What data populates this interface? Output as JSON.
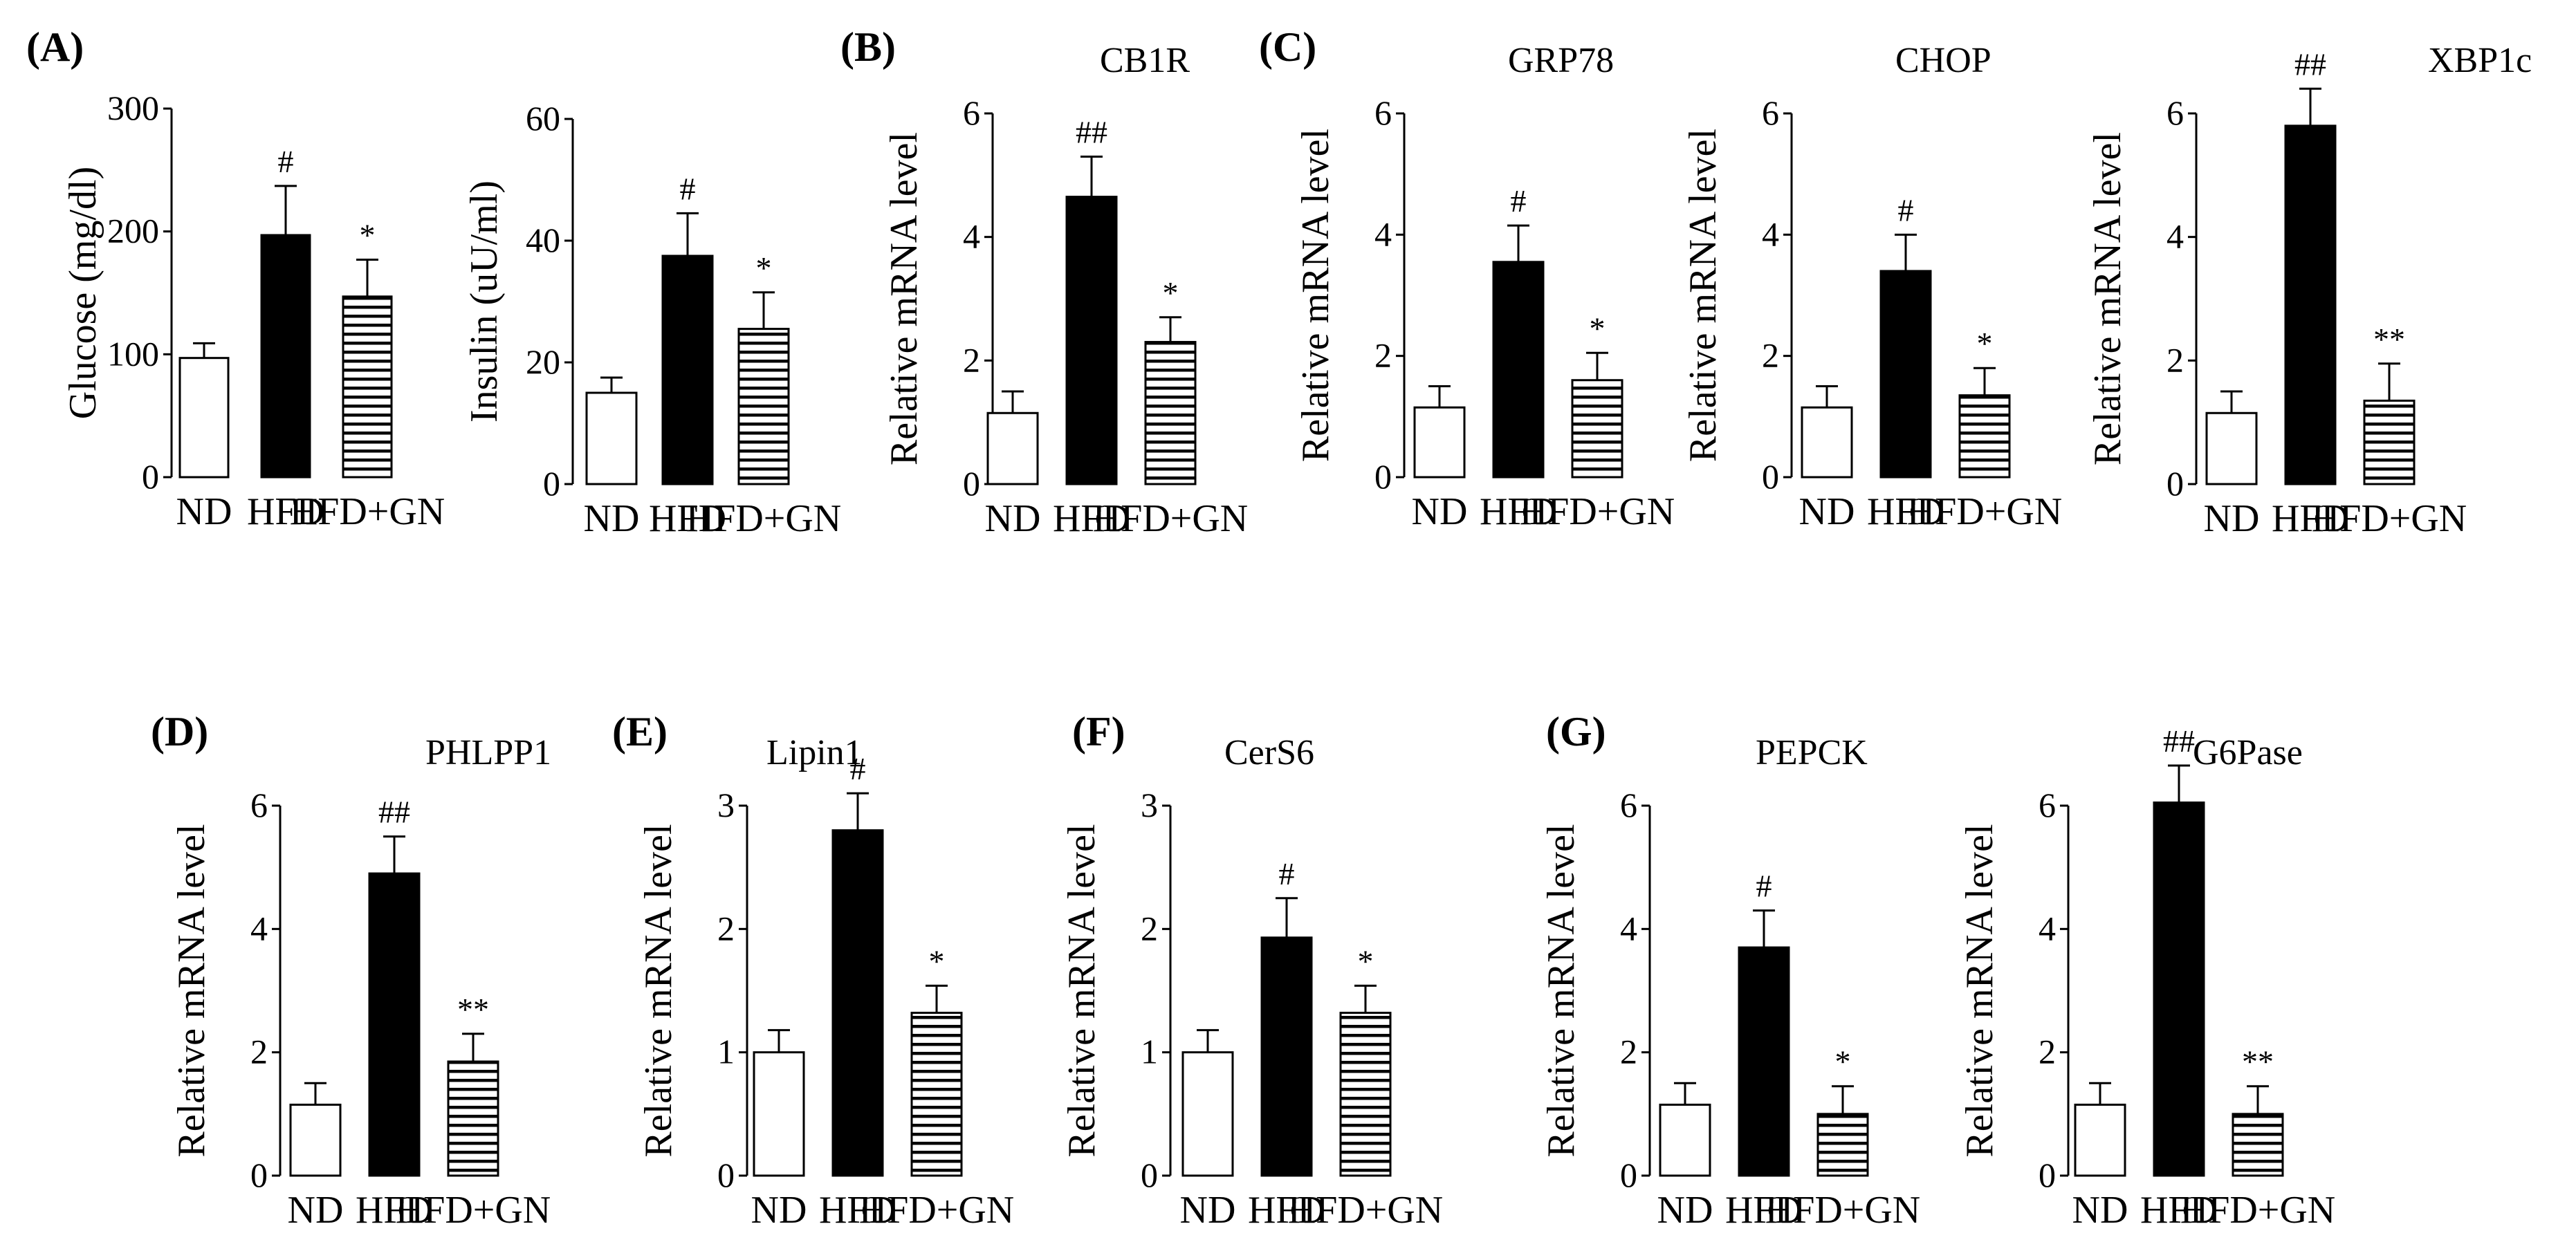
{
  "figure": {
    "panels": [
      "(A)",
      "(B)",
      "(C)",
      "(D)",
      "(E)",
      "(F)",
      "(G)"
    ],
    "groups": [
      "ND",
      "HFD",
      "HFD+GN"
    ],
    "colors": {
      "nd": "#ffffff",
      "hfd": "#000000",
      "gn_stripe": "#000000",
      "axis": "#000000"
    }
  },
  "chart_data": [
    {
      "id": "glucose",
      "panel": "(A)",
      "type": "bar",
      "title": "",
      "ylabel": "Glucose (mg/dl)",
      "categories": [
        "ND",
        "HFD",
        "HFD+GN"
      ],
      "values": [
        97,
        197,
        147
      ],
      "errors": [
        12,
        40,
        30
      ],
      "annotations": [
        "",
        "#",
        "*"
      ],
      "ylim": [
        0,
        300
      ],
      "yticks": [
        0,
        100,
        200,
        300
      ],
      "tick_labels": [
        "0",
        "100",
        "200",
        "300"
      ]
    },
    {
      "id": "insulin",
      "panel": "",
      "type": "bar",
      "title": "",
      "ylabel": "Insulin (uU/ml)",
      "categories": [
        "ND",
        "HFD",
        "HFD+GN"
      ],
      "values": [
        15,
        37.5,
        25.5
      ],
      "errors": [
        2.5,
        7,
        6
      ],
      "annotations": [
        "",
        "#",
        "*"
      ],
      "ylim": [
        0,
        60
      ],
      "yticks": [
        0,
        20,
        40,
        60
      ],
      "tick_labels": [
        "0",
        "20",
        "40",
        "60"
      ]
    },
    {
      "id": "cb1r",
      "panel": "(B)",
      "type": "bar",
      "title": "CB1R",
      "ylabel": "Relative mRNA level",
      "categories": [
        "ND",
        "HFD",
        "HFD+GN"
      ],
      "values": [
        1.15,
        4.65,
        2.3
      ],
      "errors": [
        0.35,
        0.65,
        0.4
      ],
      "annotations": [
        "",
        "##",
        "*"
      ],
      "ylim": [
        0,
        6
      ],
      "yticks": [
        0,
        2,
        4,
        6
      ],
      "tick_labels": [
        "0",
        "2",
        "4",
        "6"
      ]
    },
    {
      "id": "grp78",
      "panel": "(C)",
      "type": "bar",
      "title": "GRP78",
      "ylabel": "Relative mRNA level",
      "categories": [
        "ND",
        "HFD",
        "HFD+GN"
      ],
      "values": [
        1.15,
        3.55,
        1.6
      ],
      "errors": [
        0.35,
        0.6,
        0.45
      ],
      "annotations": [
        "",
        "#",
        "*"
      ],
      "ylim": [
        0,
        6
      ],
      "yticks": [
        0,
        2,
        4,
        6
      ],
      "tick_labels": [
        "0",
        "2",
        "4",
        "6"
      ]
    },
    {
      "id": "chop",
      "panel": "",
      "type": "bar",
      "title": "CHOP",
      "ylabel": "Relative mRNA level",
      "categories": [
        "ND",
        "HFD",
        "HFD+GN"
      ],
      "values": [
        1.15,
        3.4,
        1.35
      ],
      "errors": [
        0.35,
        0.6,
        0.45
      ],
      "annotations": [
        "",
        "#",
        "*"
      ],
      "ylim": [
        0,
        6
      ],
      "yticks": [
        0,
        2,
        4,
        6
      ],
      "tick_labels": [
        "0",
        "2",
        "4",
        "6"
      ]
    },
    {
      "id": "xbp1c",
      "panel": "",
      "type": "bar",
      "title": "XBP1c",
      "ylabel": "Relative mRNA level",
      "categories": [
        "ND",
        "HFD",
        "HFD+GN"
      ],
      "values": [
        1.15,
        5.8,
        1.35
      ],
      "errors": [
        0.35,
        0.6,
        0.6
      ],
      "annotations": [
        "",
        "##",
        "**"
      ],
      "ylim": [
        0,
        6
      ],
      "yticks": [
        0,
        2,
        4,
        6
      ],
      "tick_labels": [
        "0",
        "2",
        "4",
        "6"
      ]
    },
    {
      "id": "phlpp1",
      "panel": "(D)",
      "type": "bar",
      "title": "PHLPP1",
      "ylabel": "Relative mRNA level",
      "categories": [
        "ND",
        "HFD",
        "HFD+GN"
      ],
      "values": [
        1.15,
        4.9,
        1.85
      ],
      "errors": [
        0.35,
        0.6,
        0.45
      ],
      "annotations": [
        "",
        "##",
        "**"
      ],
      "ylim": [
        0,
        6
      ],
      "yticks": [
        0,
        2,
        4,
        6
      ],
      "tick_labels": [
        "0",
        "2",
        "4",
        "6"
      ]
    },
    {
      "id": "lipin1",
      "panel": "(E)",
      "type": "bar",
      "title": "Lipin1",
      "ylabel": "Relative mRNA level",
      "categories": [
        "ND",
        "HFD",
        "HFD+GN"
      ],
      "values": [
        1.0,
        2.8,
        1.32
      ],
      "errors": [
        0.18,
        0.3,
        0.22
      ],
      "annotations": [
        "",
        "#",
        "*"
      ],
      "ylim": [
        0,
        3
      ],
      "yticks": [
        0,
        1,
        2,
        3
      ],
      "tick_labels": [
        "0",
        "1",
        "2",
        "3"
      ]
    },
    {
      "id": "cers6",
      "panel": "(F)",
      "type": "bar",
      "title": "CerS6",
      "ylabel": "Relative mRNA level",
      "categories": [
        "ND",
        "HFD",
        "HFD+GN"
      ],
      "values": [
        1.0,
        1.93,
        1.32
      ],
      "errors": [
        0.18,
        0.32,
        0.22
      ],
      "annotations": [
        "",
        "#",
        "*"
      ],
      "ylim": [
        0,
        3
      ],
      "yticks": [
        0,
        1,
        2,
        3
      ],
      "tick_labels": [
        "0",
        "1",
        "2",
        "3"
      ]
    },
    {
      "id": "pepck",
      "panel": "(G)",
      "type": "bar",
      "title": "PEPCK",
      "ylabel": "Relative mRNA level",
      "categories": [
        "ND",
        "HFD",
        "HFD+GN"
      ],
      "values": [
        1.15,
        3.7,
        1.0
      ],
      "errors": [
        0.35,
        0.6,
        0.45
      ],
      "annotations": [
        "",
        "#",
        "*"
      ],
      "ylim": [
        0,
        6
      ],
      "yticks": [
        0,
        2,
        4,
        6
      ],
      "tick_labels": [
        "0",
        "2",
        "4",
        "6"
      ]
    },
    {
      "id": "g6pase",
      "panel": "",
      "type": "bar",
      "title": "G6Pase",
      "ylabel": "Relative mRNA level",
      "categories": [
        "ND",
        "HFD",
        "HFD+GN"
      ],
      "values": [
        1.15,
        6.05,
        1.0
      ],
      "errors": [
        0.35,
        0.6,
        0.45
      ],
      "annotations": [
        "",
        "##",
        "**"
      ],
      "ylim": [
        0,
        6
      ],
      "yticks": [
        0,
        2,
        4,
        6
      ],
      "tick_labels": [
        "0",
        "2",
        "4",
        "6"
      ]
    }
  ]
}
